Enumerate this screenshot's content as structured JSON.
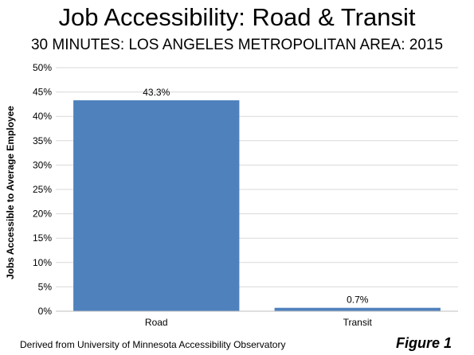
{
  "header": {
    "title": "Job Accessibility: Road & Transit",
    "subtitle": "30 MINUTES: LOS ANGELES METROPOLITAN AREA: 2015"
  },
  "footer": {
    "source": "Derived from University of Minnesota Accessibility Observatory",
    "figure_label": "Figure 1"
  },
  "chart_data": {
    "type": "bar",
    "title": "Job Accessibility: Road & Transit",
    "subtitle": "30 MINUTES: LOS ANGELES METROPOLITAN AREA: 2015",
    "xlabel": "",
    "ylabel": "Jobs Accessible to Average Employee",
    "categories": [
      "Road",
      "Transit"
    ],
    "values": [
      43.3,
      0.7
    ],
    "data_labels": [
      "43.3%",
      "0.7%"
    ],
    "ylim": [
      0,
      50
    ],
    "yticks": [
      0,
      5,
      10,
      15,
      20,
      25,
      30,
      35,
      40,
      45,
      50
    ],
    "ytick_labels": [
      "0%",
      "5%",
      "10%",
      "15%",
      "20%",
      "25%",
      "30%",
      "35%",
      "40%",
      "45%",
      "50%"
    ],
    "grid": true,
    "legend": "none",
    "bar_color": "#4f81bd",
    "grid_color": "#d9d9d9"
  }
}
